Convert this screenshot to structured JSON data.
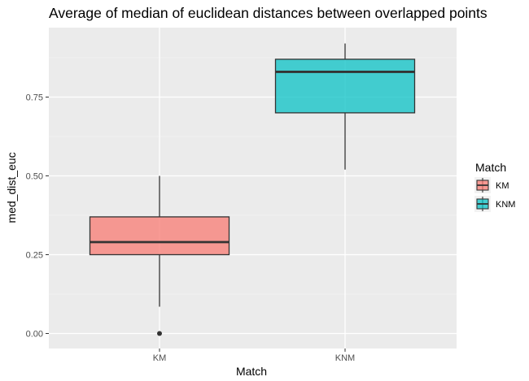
{
  "chart_data": {
    "type": "boxplot",
    "title": "Average of median of euclidean distances between overlapped points",
    "xlabel": "Match",
    "ylabel": "med_dist_euc",
    "categories": [
      "KM",
      "KNM"
    ],
    "y_ticks": [
      0.0,
      0.25,
      0.5,
      0.75
    ],
    "y_tick_labels": [
      "0.00",
      "0.25",
      "0.50",
      "0.75"
    ],
    "ylim": [
      -0.05,
      0.97
    ],
    "grid": true,
    "legend": {
      "title": "Match",
      "position": "right",
      "entries": [
        "KM",
        "KNM"
      ]
    },
    "series": [
      {
        "name": "KM",
        "color": "#F8766D",
        "whisker_low": 0.085,
        "q1": 0.25,
        "median": 0.29,
        "q3": 0.37,
        "whisker_high": 0.5,
        "outliers": [
          0.0
        ]
      },
      {
        "name": "KNM",
        "color": "#00BFC4",
        "whisker_low": 0.52,
        "q1": 0.7,
        "median": 0.83,
        "q3": 0.87,
        "whisker_high": 0.92,
        "outliers": []
      }
    ]
  }
}
